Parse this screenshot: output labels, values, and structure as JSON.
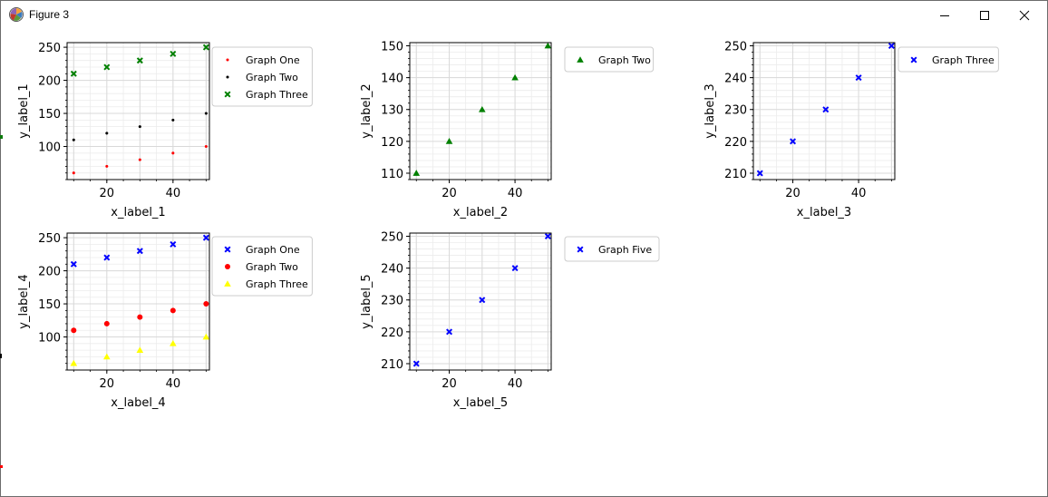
{
  "window": {
    "title": "Figure 3",
    "icons": {
      "app": "matplotlib-icon",
      "minimize": "minimize-icon",
      "maximize": "maximize-icon",
      "close": "close-icon"
    }
  },
  "colors": {
    "red": "#ff0000",
    "black": "#000000",
    "green": "#008000",
    "blue": "#0000ff",
    "yellow": "#ffff00",
    "grid": "#d9d9d9"
  },
  "chart_data": [
    {
      "type": "scatter",
      "xlabel": "x_label_1",
      "ylabel": "y_label_1",
      "xlim": [
        8,
        51
      ],
      "ylim": [
        50,
        257
      ],
      "xticks": [
        20,
        40
      ],
      "yticks": [
        100,
        150,
        200,
        250
      ],
      "x": [
        10,
        20,
        30,
        40,
        50
      ],
      "legend_position": "outside-right",
      "series": [
        {
          "name": "Graph One",
          "marker": "dot",
          "color": "#ff0000",
          "values": [
            60,
            70,
            80,
            90,
            100
          ]
        },
        {
          "name": "Graph Two",
          "marker": "dot",
          "color": "#000000",
          "values": [
            110,
            120,
            130,
            140,
            150
          ]
        },
        {
          "name": "Graph Three",
          "marker": "x",
          "color": "#008000",
          "values": [
            210,
            220,
            230,
            240,
            250
          ]
        }
      ]
    },
    {
      "type": "scatter",
      "xlabel": "x_label_2",
      "ylabel": "y_label_2",
      "xlim": [
        8,
        51
      ],
      "ylim": [
        108,
        151
      ],
      "xticks": [
        20,
        40
      ],
      "yticks": [
        110,
        120,
        130,
        140,
        150
      ],
      "x": [
        10,
        20,
        30,
        40,
        50
      ],
      "legend_position": "outside-right",
      "series": [
        {
          "name": "Graph Two",
          "marker": "triangle",
          "color": "#008000",
          "values": [
            110,
            120,
            130,
            140,
            150
          ]
        }
      ]
    },
    {
      "type": "scatter",
      "xlabel": "x_label_3",
      "ylabel": "y_label_3",
      "xlim": [
        8,
        51
      ],
      "ylim": [
        208,
        251
      ],
      "xticks": [
        20,
        40
      ],
      "yticks": [
        210,
        220,
        230,
        240,
        250
      ],
      "x": [
        10,
        20,
        30,
        40,
        50
      ],
      "legend_position": "outside-right",
      "series": [
        {
          "name": "Graph Three",
          "marker": "x",
          "color": "#0000ff",
          "values": [
            210,
            220,
            230,
            240,
            250
          ]
        }
      ]
    },
    {
      "type": "scatter",
      "xlabel": "x_label_4",
      "ylabel": "y_label_4",
      "xlim": [
        8,
        51
      ],
      "ylim": [
        50,
        257
      ],
      "xticks": [
        20,
        40
      ],
      "yticks": [
        100,
        150,
        200,
        250
      ],
      "x": [
        10,
        20,
        30,
        40,
        50
      ],
      "legend_position": "outside-right",
      "series": [
        {
          "name": "Graph One",
          "marker": "x",
          "color": "#0000ff",
          "values": [
            210,
            220,
            230,
            240,
            250
          ]
        },
        {
          "name": "Graph Two",
          "marker": "circle",
          "color": "#ff0000",
          "values": [
            110,
            120,
            130,
            140,
            150
          ]
        },
        {
          "name": "Graph Three",
          "marker": "triangle",
          "color": "#ffff00",
          "values": [
            60,
            70,
            80,
            90,
            100
          ]
        }
      ]
    },
    {
      "type": "scatter",
      "xlabel": "x_label_5",
      "ylabel": "y_label_5",
      "xlim": [
        8,
        51
      ],
      "ylim": [
        208,
        251
      ],
      "xticks": [
        20,
        40
      ],
      "yticks": [
        210,
        220,
        230,
        240,
        250
      ],
      "x": [
        10,
        20,
        30,
        40,
        50
      ],
      "legend_position": "outside-right",
      "series": [
        {
          "name": "Graph Five",
          "marker": "x",
          "color": "#0000ff",
          "values": [
            210,
            220,
            230,
            240,
            250
          ]
        }
      ]
    }
  ]
}
